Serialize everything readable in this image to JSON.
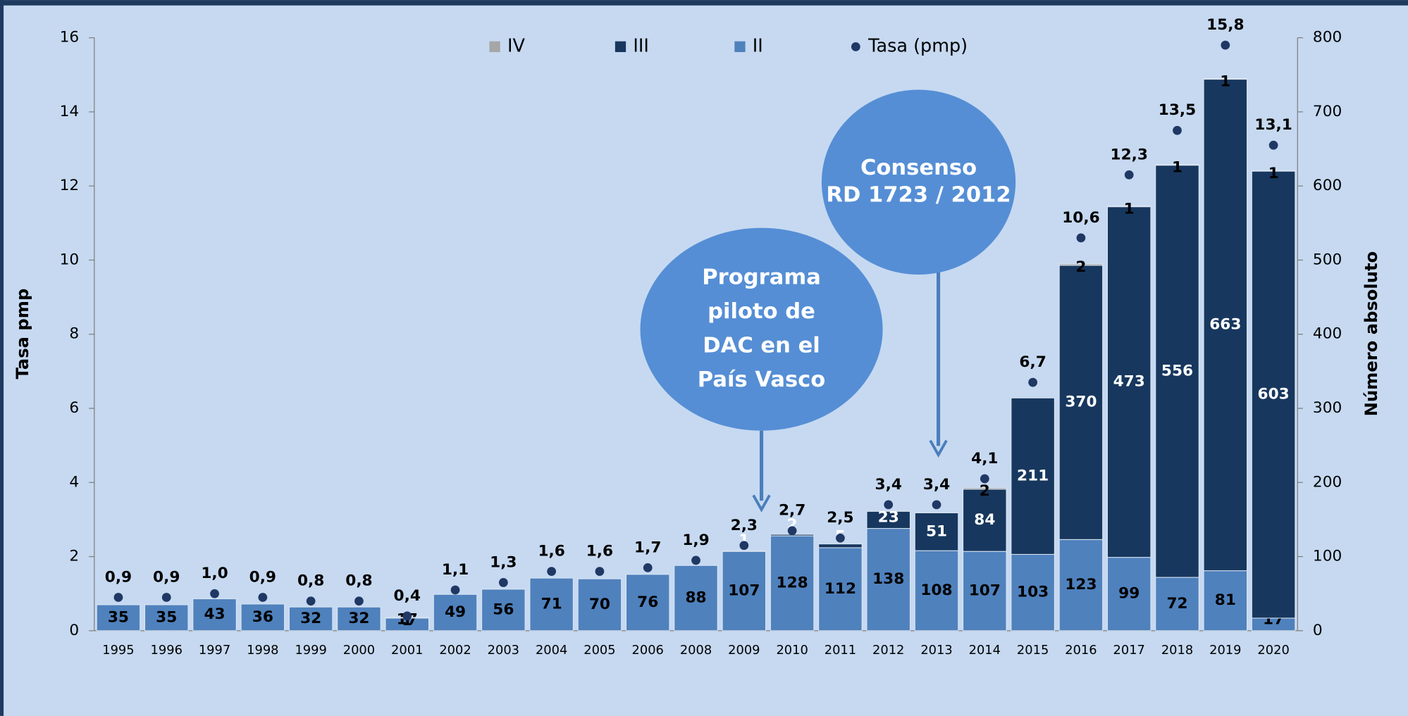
{
  "chart_data": {
    "type": "bar",
    "categories": [
      "1995",
      "1996",
      "1997",
      "1998",
      "1999",
      "2000",
      "2001",
      "2002",
      "2003",
      "2004",
      "2005",
      "2006",
      "2008",
      "2009",
      "2010",
      "2011",
      "2012",
      "2013",
      "2014",
      "2015",
      "2016",
      "2017",
      "2018",
      "2019",
      "2020"
    ],
    "series": [
      {
        "name": "IV",
        "color": "#a6a6a6",
        "axis": "y2",
        "values": [
          null,
          null,
          null,
          null,
          null,
          null,
          1,
          null,
          null,
          null,
          null,
          null,
          null,
          null,
          null,
          null,
          null,
          null,
          2,
          null,
          2,
          1,
          1,
          1,
          1
        ]
      },
      {
        "name": "III",
        "color": "#17375e",
        "axis": "y2",
        "values": [
          null,
          null,
          null,
          null,
          null,
          null,
          null,
          null,
          null,
          null,
          null,
          null,
          null,
          1,
          2,
          5,
          23,
          51,
          84,
          211,
          370,
          473,
          556,
          663,
          603
        ]
      },
      {
        "name": "II",
        "color": "#4f81bd",
        "axis": "y2",
        "values": [
          35,
          35,
          43,
          36,
          32,
          32,
          17,
          49,
          56,
          71,
          70,
          76,
          88,
          107,
          128,
          112,
          138,
          108,
          107,
          103,
          123,
          99,
          72,
          81,
          17
        ]
      },
      {
        "name": "Tasa (pmp)",
        "type": "scatter",
        "color": "#1f3864",
        "axis": "y",
        "values": [
          0.9,
          0.9,
          1.0,
          0.9,
          0.8,
          0.8,
          0.4,
          1.1,
          1.3,
          1.6,
          1.6,
          1.7,
          1.9,
          2.3,
          2.7,
          2.5,
          3.4,
          3.4,
          4.1,
          6.7,
          10.6,
          12.3,
          13.5,
          15.8,
          13.1
        ],
        "value_labels": [
          "0,9",
          "0,9",
          "1,0",
          "0,9",
          "0,8",
          "0,8",
          "0,4",
          "1,1",
          "1,3",
          "1,6",
          "1,6",
          "1,7",
          "1,9",
          "2,3",
          "2,7",
          "2,5",
          "3,4",
          "3,4",
          "4,1",
          "6,7",
          "10,6",
          "12,3",
          "13,5",
          "15,8",
          "13,1"
        ]
      }
    ],
    "ylabel": "Tasa pmp",
    "y2label": "Número absoluto",
    "ylim": [
      0,
      16
    ],
    "yticks": [
      0,
      2,
      4,
      6,
      8,
      10,
      12,
      14,
      16
    ],
    "y2lim": [
      0,
      800
    ],
    "y2ticks": [
      0,
      100,
      200,
      300,
      400,
      500,
      600,
      700,
      800
    ],
    "stacked": true,
    "legend": "top",
    "annotations": [
      {
        "lines": [
          "Programa",
          "piloto de",
          "DAC en el",
          "País Vasco"
        ]
      },
      {
        "lines": [
          "Consenso",
          "RD 1723 / 2012"
        ]
      }
    ]
  }
}
